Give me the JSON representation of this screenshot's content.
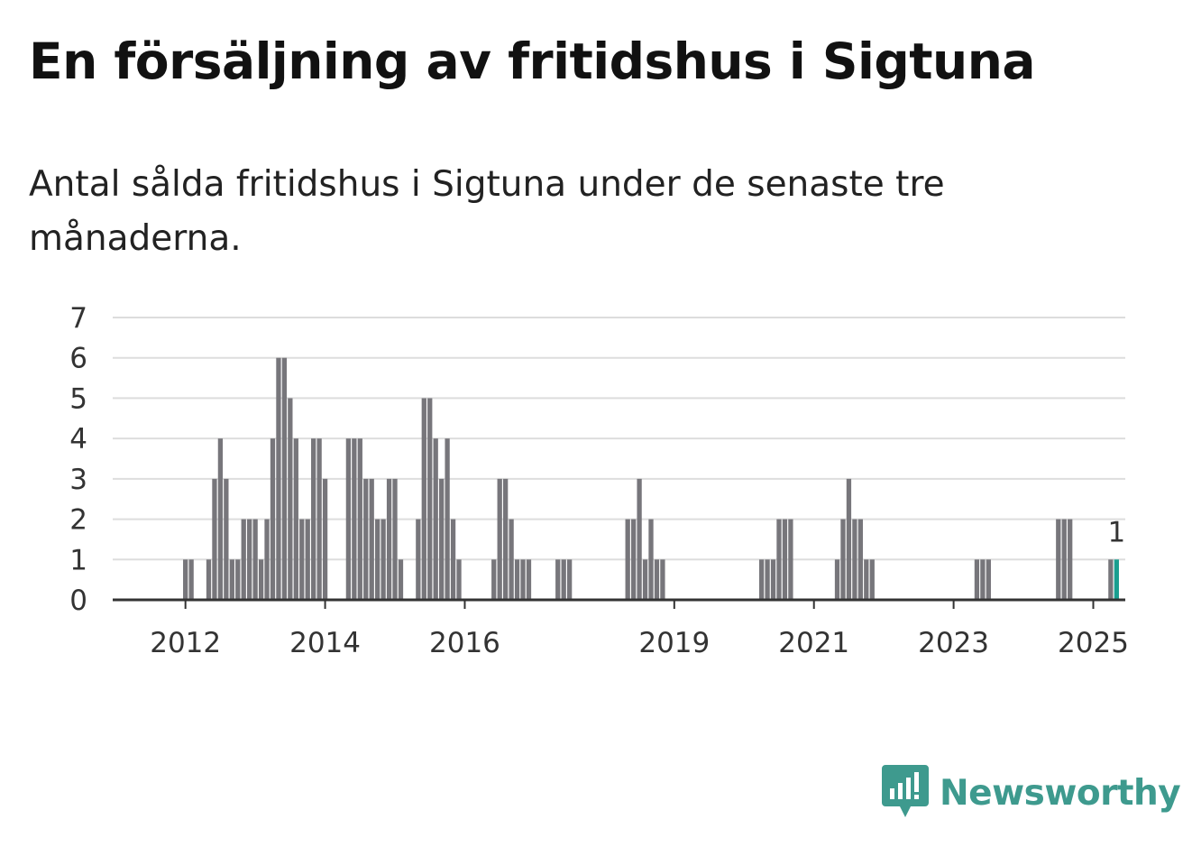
{
  "title": "En försäljning av fritidshus i Sigtuna",
  "subtitle": "Antal sålda fritidshus i Sigtuna under de senaste tre månaderna.",
  "brand": {
    "name": "Newsworthy",
    "icon": "bar-chart-speech-bubble-icon",
    "color": "#3e9a8e"
  },
  "colors": {
    "bar": "#77767b",
    "highlight": "#1a9e8f",
    "grid": "#dddddd",
    "axis": "#333333"
  },
  "chart_data": {
    "type": "bar",
    "x_start": "2011-01",
    "x_end": "2025-06",
    "ylim": [
      0,
      7
    ],
    "yticks": [
      0,
      1,
      2,
      3,
      4,
      5,
      6,
      7
    ],
    "xticks": [
      "2012",
      "2014",
      "2016",
      "2019",
      "2021",
      "2023",
      "2025"
    ],
    "grid": true,
    "xlabel": "",
    "ylabel": "",
    "highlight_label": "1",
    "bars": [
      {
        "x": "2012-01",
        "y": 1
      },
      {
        "x": "2012-02",
        "y": 1
      },
      {
        "x": "2012-05",
        "y": 1
      },
      {
        "x": "2012-06",
        "y": 3
      },
      {
        "x": "2012-07",
        "y": 4
      },
      {
        "x": "2012-08",
        "y": 3
      },
      {
        "x": "2012-09",
        "y": 1
      },
      {
        "x": "2012-10",
        "y": 1
      },
      {
        "x": "2012-11",
        "y": 2
      },
      {
        "x": "2012-12",
        "y": 2
      },
      {
        "x": "2013-01",
        "y": 2
      },
      {
        "x": "2013-02",
        "y": 1
      },
      {
        "x": "2013-03",
        "y": 2
      },
      {
        "x": "2013-04",
        "y": 4
      },
      {
        "x": "2013-05",
        "y": 6
      },
      {
        "x": "2013-06",
        "y": 6
      },
      {
        "x": "2013-07",
        "y": 5
      },
      {
        "x": "2013-08",
        "y": 4
      },
      {
        "x": "2013-09",
        "y": 2
      },
      {
        "x": "2013-10",
        "y": 2
      },
      {
        "x": "2013-11",
        "y": 4
      },
      {
        "x": "2013-12",
        "y": 4
      },
      {
        "x": "2014-01",
        "y": 3
      },
      {
        "x": "2014-05",
        "y": 4
      },
      {
        "x": "2014-06",
        "y": 4
      },
      {
        "x": "2014-07",
        "y": 4
      },
      {
        "x": "2014-08",
        "y": 3
      },
      {
        "x": "2014-09",
        "y": 3
      },
      {
        "x": "2014-10",
        "y": 2
      },
      {
        "x": "2014-11",
        "y": 2
      },
      {
        "x": "2014-12",
        "y": 3
      },
      {
        "x": "2015-01",
        "y": 3
      },
      {
        "x": "2015-02",
        "y": 1
      },
      {
        "x": "2015-05",
        "y": 2
      },
      {
        "x": "2015-06",
        "y": 5
      },
      {
        "x": "2015-07",
        "y": 5
      },
      {
        "x": "2015-08",
        "y": 4
      },
      {
        "x": "2015-09",
        "y": 3
      },
      {
        "x": "2015-10",
        "y": 4
      },
      {
        "x": "2015-11",
        "y": 2
      },
      {
        "x": "2015-12",
        "y": 1
      },
      {
        "x": "2016-06",
        "y": 1
      },
      {
        "x": "2016-07",
        "y": 3
      },
      {
        "x": "2016-08",
        "y": 3
      },
      {
        "x": "2016-09",
        "y": 2
      },
      {
        "x": "2016-10",
        "y": 1
      },
      {
        "x": "2016-11",
        "y": 1
      },
      {
        "x": "2016-12",
        "y": 1
      },
      {
        "x": "2017-05",
        "y": 1
      },
      {
        "x": "2017-06",
        "y": 1
      },
      {
        "x": "2017-07",
        "y": 1
      },
      {
        "x": "2018-05",
        "y": 2
      },
      {
        "x": "2018-06",
        "y": 2
      },
      {
        "x": "2018-07",
        "y": 3
      },
      {
        "x": "2018-08",
        "y": 1
      },
      {
        "x": "2018-09",
        "y": 2
      },
      {
        "x": "2018-10",
        "y": 1
      },
      {
        "x": "2018-11",
        "y": 1
      },
      {
        "x": "2020-04",
        "y": 1
      },
      {
        "x": "2020-05",
        "y": 1
      },
      {
        "x": "2020-06",
        "y": 1
      },
      {
        "x": "2020-07",
        "y": 2
      },
      {
        "x": "2020-08",
        "y": 2
      },
      {
        "x": "2020-09",
        "y": 2
      },
      {
        "x": "2021-05",
        "y": 1
      },
      {
        "x": "2021-06",
        "y": 2
      },
      {
        "x": "2021-07",
        "y": 3
      },
      {
        "x": "2021-08",
        "y": 2
      },
      {
        "x": "2021-09",
        "y": 2
      },
      {
        "x": "2021-10",
        "y": 1
      },
      {
        "x": "2021-11",
        "y": 1
      },
      {
        "x": "2023-05",
        "y": 1
      },
      {
        "x": "2023-06",
        "y": 1
      },
      {
        "x": "2023-07",
        "y": 1
      },
      {
        "x": "2024-07",
        "y": 2
      },
      {
        "x": "2024-08",
        "y": 2
      },
      {
        "x": "2024-09",
        "y": 2
      },
      {
        "x": "2025-04",
        "y": 1
      },
      {
        "x": "2025-05",
        "y": 1,
        "highlight": true
      }
    ]
  }
}
